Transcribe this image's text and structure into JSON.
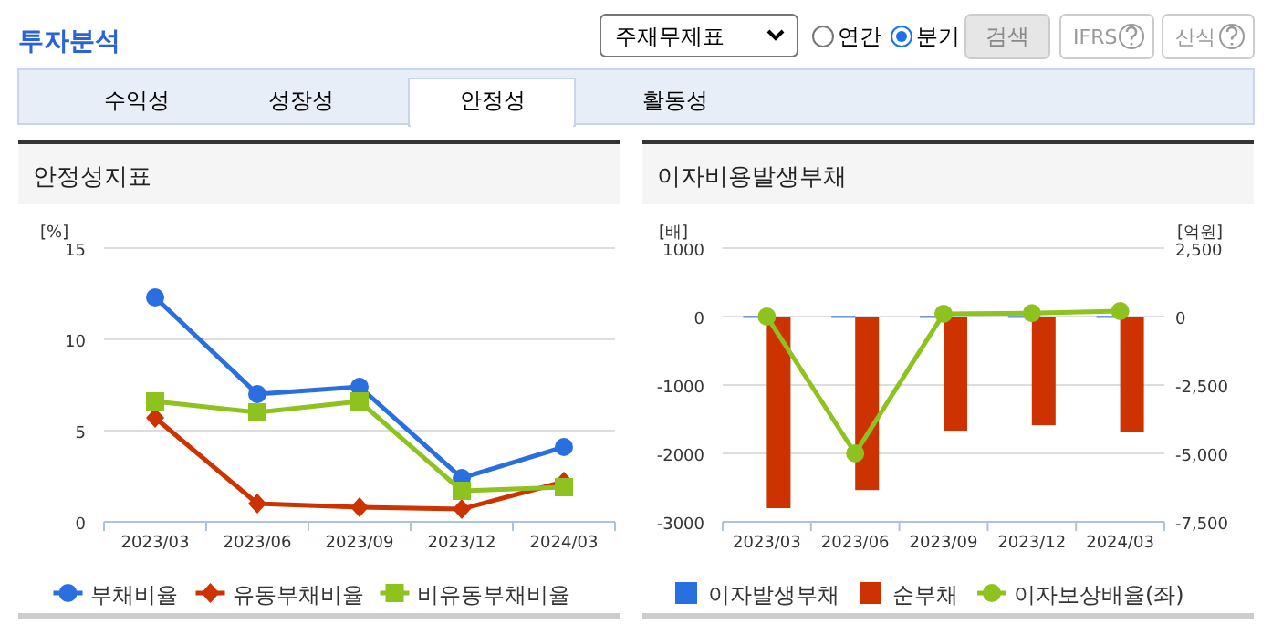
{
  "chart_data": [
    {
      "type": "line",
      "title": "안정성지표",
      "ylabel": "[%]",
      "categories": [
        "2023/03",
        "2023/06",
        "2023/09",
        "2023/12",
        "2024/03"
      ],
      "series": [
        {
          "name": "부채비율",
          "color": "#2a6fe0",
          "marker": "circle",
          "values": [
            12.3,
            7.0,
            7.4,
            2.4,
            4.1
          ]
        },
        {
          "name": "유동부채비율",
          "color": "#cc3300",
          "marker": "diamond",
          "values": [
            5.7,
            1.0,
            0.8,
            0.7,
            2.2
          ]
        },
        {
          "name": "비유동부채비율",
          "color": "#8dc21f",
          "marker": "square",
          "values": [
            6.6,
            6.0,
            6.6,
            1.7,
            1.9
          ]
        }
      ],
      "ylim": [
        0,
        15
      ],
      "yticks": [
        0,
        5,
        10,
        15
      ],
      "grid": "y",
      "legend": "bottom",
      "annotations": [
        "투자분석",
        "주재무제표",
        "연간",
        "분기",
        "검색",
        "IFRS",
        "산식",
        "수익성",
        "성장성",
        "안정성",
        "활동성"
      ]
    },
    {
      "type": "bar",
      "title": "이자비용발생부채",
      "ylabel": "[배]",
      "y2label": "[억원]",
      "categories": [
        "2023/03",
        "2023/06",
        "2023/09",
        "2023/12",
        "2024/03"
      ],
      "series": [
        {
          "name": "이자발생부채",
          "color": "#2a6fe0",
          "axis": "y2",
          "values": [
            20,
            20,
            20,
            20,
            20
          ]
        },
        {
          "name": "순부채",
          "color": "#cc3300",
          "axis": "y2",
          "values": [
            -7000,
            -6340,
            -4170,
            -3970,
            -4220
          ]
        },
        {
          "name": "이자보상배율(좌)",
          "color": "#8dc21f",
          "type": "line",
          "marker": "circle",
          "values": [
            0,
            -2000,
            40,
            50,
            80
          ]
        }
      ],
      "ylim": [
        -3000,
        1000
      ],
      "yticks": [
        -3000,
        -2000,
        -1000,
        0,
        1000
      ],
      "y2lim": [
        -7500,
        2500
      ],
      "y2ticks": [
        {
          "value": -7500,
          "label": "-7,500"
        },
        {
          "value": -5000,
          "label": "-5,000"
        },
        {
          "value": -2500,
          "label": "-2,500"
        },
        {
          "value": 0,
          "label": "0"
        },
        {
          "value": 2500,
          "label": "2,500"
        }
      ],
      "grid": "y",
      "legend": "bottom"
    }
  ]
}
